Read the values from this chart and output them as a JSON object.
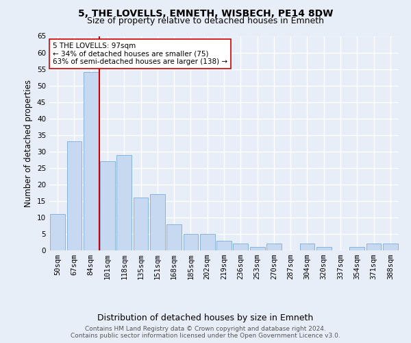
{
  "title": "5, THE LOVELLS, EMNETH, WISBECH, PE14 8DW",
  "subtitle": "Size of property relative to detached houses in Emneth",
  "xlabel": "Distribution of detached houses by size in Emneth",
  "ylabel": "Number of detached properties",
  "bar_color": "#c6d9f0",
  "bar_edge_color": "#7aabda",
  "background_color": "#e8eef8",
  "grid_color": "#ffffff",
  "categories": [
    "50sqm",
    "67sqm",
    "84sqm",
    "101sqm",
    "118sqm",
    "135sqm",
    "151sqm",
    "168sqm",
    "185sqm",
    "202sqm",
    "219sqm",
    "236sqm",
    "253sqm",
    "270sqm",
    "287sqm",
    "304sqm",
    "320sqm",
    "337sqm",
    "354sqm",
    "371sqm",
    "388sqm"
  ],
  "values": [
    11,
    33,
    54,
    27,
    29,
    16,
    17,
    8,
    5,
    5,
    3,
    2,
    1,
    2,
    0,
    2,
    1,
    0,
    1,
    2,
    2
  ],
  "vline_color": "#cc0000",
  "annotation_text": "5 THE LOVELLS: 97sqm\n← 34% of detached houses are smaller (75)\n63% of semi-detached houses are larger (138) →",
  "annotation_box_color": "#ffffff",
  "annotation_box_edge": "#cc0000",
  "ylim": [
    0,
    65
  ],
  "yticks": [
    0,
    5,
    10,
    15,
    20,
    25,
    30,
    35,
    40,
    45,
    50,
    55,
    60,
    65
  ],
  "footer_line1": "Contains HM Land Registry data © Crown copyright and database right 2024.",
  "footer_line2": "Contains public sector information licensed under the Open Government Licence v3.0.",
  "title_fontsize": 10,
  "subtitle_fontsize": 9,
  "xlabel_fontsize": 9,
  "ylabel_fontsize": 8.5,
  "tick_fontsize": 7.5,
  "annot_fontsize": 7.5,
  "footer_fontsize": 6.5
}
